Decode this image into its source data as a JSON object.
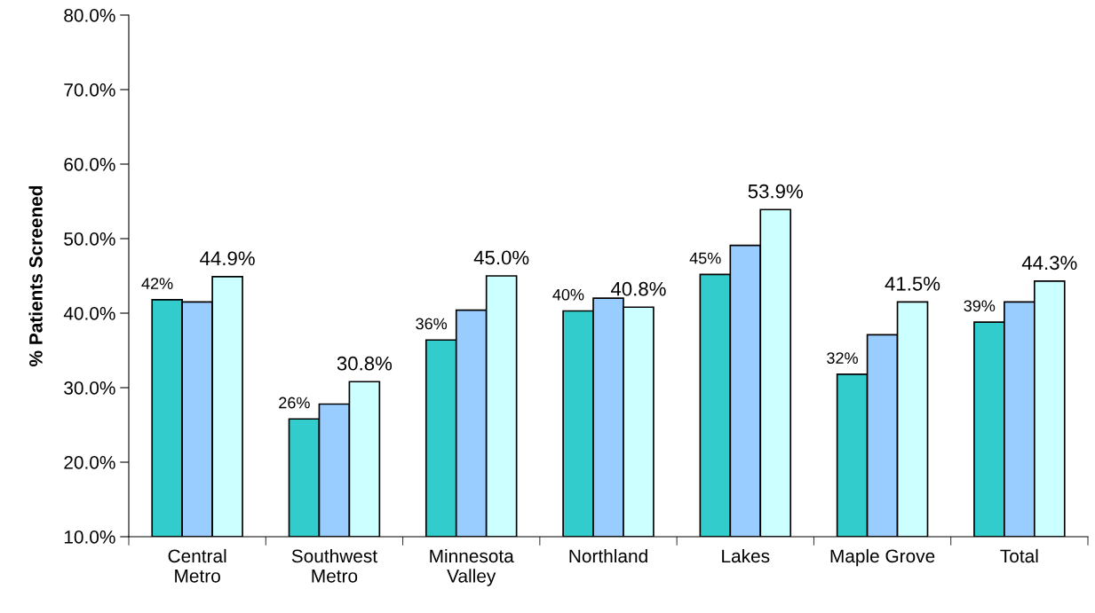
{
  "chart_data": {
    "type": "bar",
    "ylabel": "% Patients Screened",
    "categories": [
      "Central\nMetro",
      "Southwest\nMetro",
      "Minnesota\nValley",
      "Northland",
      "Lakes",
      "Maple Grove",
      "Total"
    ],
    "series": [
      {
        "color": "#33cccc",
        "values": [
          41.8,
          25.8,
          36.4,
          40.3,
          45.2,
          31.8,
          38.8
        ],
        "value_labels": [
          "42%",
          "26%",
          "36%",
          "40%",
          "45%",
          "32%",
          "39%"
        ]
      },
      {
        "color": "#99ccff",
        "values": [
          41.5,
          27.8,
          40.4,
          42.0,
          49.1,
          37.1,
          41.5
        ]
      },
      {
        "color": "#ccffff",
        "values": [
          44.9,
          30.8,
          45.0,
          40.8,
          53.9,
          41.5,
          44.3
        ],
        "value_labels": [
          "44.9%",
          "30.8%",
          "45.0%",
          "40.8%",
          "53.9%",
          "41.5%",
          "44.3%"
        ]
      }
    ],
    "ylim": [
      10,
      80
    ],
    "yticks": [
      {
        "value": 10,
        "label": "10.0%"
      },
      {
        "value": 20,
        "label": "20.0%"
      },
      {
        "value": 30,
        "label": "30.0%"
      },
      {
        "value": 40,
        "label": "40.0%"
      },
      {
        "value": 50,
        "label": "50.0%"
      },
      {
        "value": 60,
        "label": "60.0%"
      },
      {
        "value": 70,
        "label": "70.0%"
      },
      {
        "value": 80,
        "label": "80.0%"
      }
    ],
    "grid": false,
    "legend": false
  }
}
